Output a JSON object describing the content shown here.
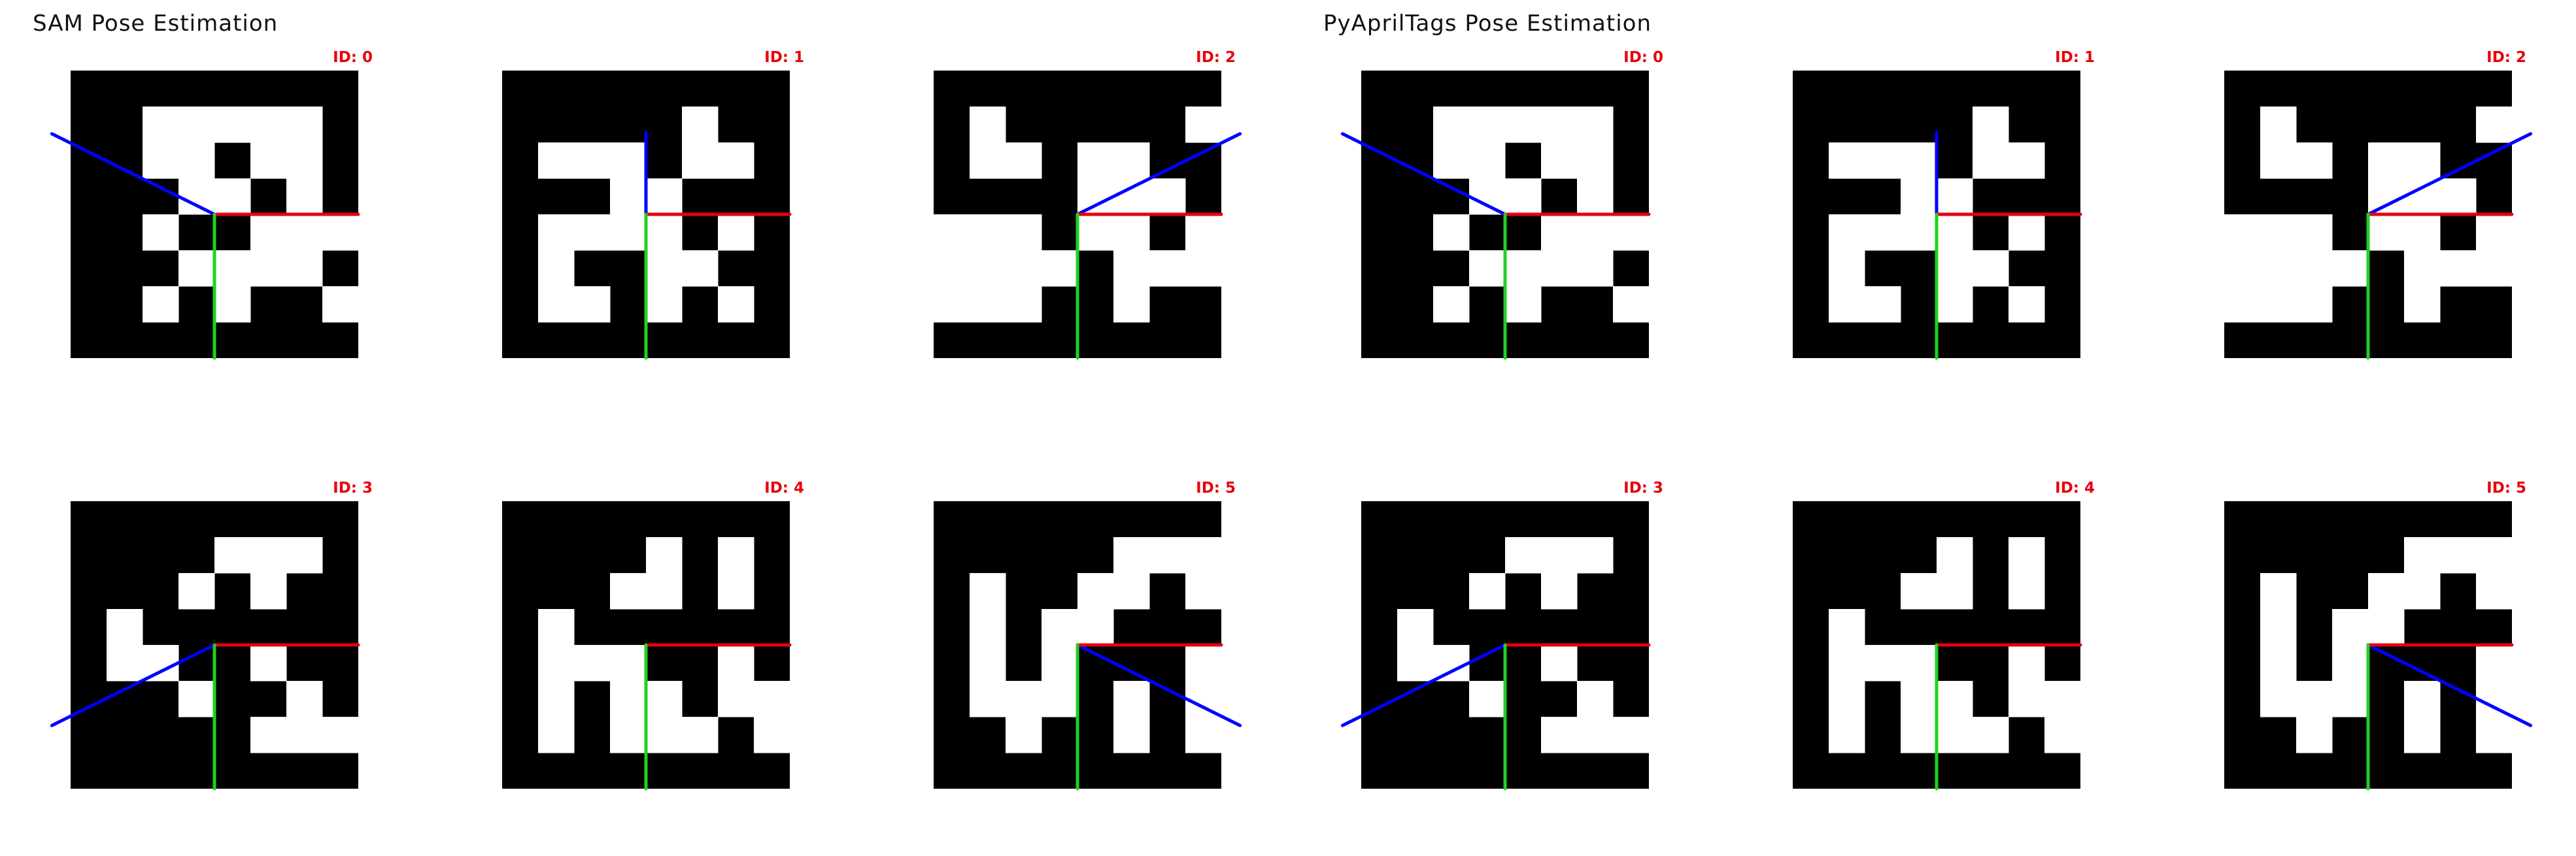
{
  "panels": [
    {
      "title": "SAM Pose Estimation",
      "tags": [
        {
          "id_label": "ID: 0",
          "grid": [
            "........",
            "..#####.",
            "..##.##.",
            "...##.#.",
            "..#..###",
            "...####.",
            "..#.#..#",
            "........"
          ],
          "axes": {
            "x": {
              "dx": 1.0,
              "dy": 0.0
            },
            "y": {
              "dx": 0.0,
              "dy": 1.0
            },
            "z": {
              "dx": -1.13,
              "dy": -0.56
            }
          }
        },
        {
          "id_label": "ID: 1",
          "grid": [
            "........",
            ".....#..",
            ".###.##.",
            "...##...",
            ".####.#.",
            ".#..##..",
            ".##.#.#.",
            "........"
          ],
          "axes": {
            "x": {
              "dx": 1.0,
              "dy": 0.0
            },
            "y": {
              "dx": 0.0,
              "dy": 1.0
            },
            "z": {
              "dx": 0.0,
              "dy": -0.57
            }
          }
        },
        {
          "id_label": "ID: 2",
          "grid": [
            "........",
            ".#.....#",
            ".##.##..",
            "....###.",
            "###.##.#",
            "####.###",
            "###..#..",
            "........"
          ],
          "axes": {
            "x": {
              "dx": 1.0,
              "dy": 0.0
            },
            "y": {
              "dx": 0.0,
              "dy": 1.0
            },
            "z": {
              "dx": 1.13,
              "dy": -0.56
            }
          }
        },
        {
          "id_label": "ID: 3",
          "grid": [
            "........",
            "....###.",
            "...#.#..",
            ".#......",
            ".##..#..",
            "...#..#.",
            ".....###",
            "........"
          ],
          "axes": {
            "x": {
              "dx": 1.0,
              "dy": 0.0
            },
            "y": {
              "dx": 0.0,
              "dy": 1.0
            },
            "z": {
              "dx": -1.13,
              "dy": 0.56
            }
          }
        },
        {
          "id_label": "ID: 4",
          "grid": [
            "........",
            "....#.#.",
            "...##.#.",
            ".#......",
            ".###..#.",
            ".#.##.##",
            ".#.###.#",
            "........"
          ],
          "axes": {
            "x": {
              "dx": 1.0,
              "dy": 0.0
            },
            "y": {
              "dx": 0.0,
              "dy": 1.0
            },
            "z": {
              "dx": 0.0,
              "dy": 0.57
            }
          }
        },
        {
          "id_label": "ID: 5",
          "grid": [
            "........",
            ".....###",
            ".#..##.#",
            ".#.##...",
            ".#.#...#",
            ".###.#.#",
            "..#..#.#",
            "........"
          ],
          "axes": {
            "x": {
              "dx": 1.0,
              "dy": 0.0
            },
            "y": {
              "dx": 0.0,
              "dy": 1.0
            },
            "z": {
              "dx": 1.13,
              "dy": 0.56
            }
          }
        }
      ]
    },
    {
      "title": "PyAprilTags Pose Estimation",
      "tags": [
        {
          "id_label": "ID: 0",
          "grid": [
            "........",
            "..#####.",
            "..##.##.",
            "...##.#.",
            "..#..###",
            "...####.",
            "..#.#..#",
            "........"
          ],
          "axes": {
            "x": {
              "dx": 1.0,
              "dy": 0.0
            },
            "y": {
              "dx": 0.0,
              "dy": 1.0
            },
            "z": {
              "dx": -1.13,
              "dy": -0.56
            }
          }
        },
        {
          "id_label": "ID: 1",
          "grid": [
            "........",
            ".....#..",
            ".###.##.",
            "...##...",
            ".####.#.",
            ".#..##..",
            ".##.#.#.",
            "........"
          ],
          "axes": {
            "x": {
              "dx": 1.0,
              "dy": 0.0
            },
            "y": {
              "dx": 0.0,
              "dy": 1.0
            },
            "z": {
              "dx": 0.0,
              "dy": -0.57
            }
          }
        },
        {
          "id_label": "ID: 2",
          "grid": [
            "........",
            ".#.....#",
            ".##.##..",
            "....###.",
            "###.##.#",
            "####.###",
            "###..#..",
            "........"
          ],
          "axes": {
            "x": {
              "dx": 1.0,
              "dy": 0.0
            },
            "y": {
              "dx": 0.0,
              "dy": 1.0
            },
            "z": {
              "dx": 1.13,
              "dy": -0.56
            }
          }
        },
        {
          "id_label": "ID: 3",
          "grid": [
            "........",
            "....###.",
            "...#.#..",
            ".#......",
            ".##..#..",
            "...#..#.",
            ".....###",
            "........"
          ],
          "axes": {
            "x": {
              "dx": 1.0,
              "dy": 0.0
            },
            "y": {
              "dx": 0.0,
              "dy": 1.0
            },
            "z": {
              "dx": -1.13,
              "dy": 0.56
            }
          }
        },
        {
          "id_label": "ID: 4",
          "grid": [
            "........",
            "....#.#.",
            "...##.#.",
            ".#......",
            ".###..#.",
            ".#.##.##",
            ".#.###.#",
            "........"
          ],
          "axes": {
            "x": {
              "dx": 1.0,
              "dy": 0.0
            },
            "y": {
              "dx": 0.0,
              "dy": 1.0
            },
            "z": {
              "dx": 0.0,
              "dy": 0.57
            }
          }
        },
        {
          "id_label": "ID: 5",
          "grid": [
            "........",
            ".....###",
            ".#..##.#",
            ".#.##...",
            ".#.#...#",
            ".###.#.#",
            "..#..#.#",
            "........"
          ],
          "axes": {
            "x": {
              "dx": 1.0,
              "dy": 0.0
            },
            "y": {
              "dx": 0.0,
              "dy": 1.0
            },
            "z": {
              "dx": 1.13,
              "dy": 0.56
            }
          }
        }
      ]
    }
  ],
  "colors": {
    "tag_black": "#000000",
    "tag_white": "#ffffff",
    "id_label": "#e8000b",
    "x_axis": "#e8000b",
    "y_axis": "#1ed21e",
    "z_axis": "#0000ff"
  }
}
